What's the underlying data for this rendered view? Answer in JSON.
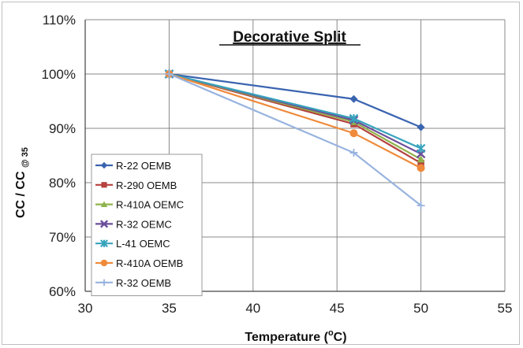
{
  "chart_data": {
    "type": "line",
    "title": "Decorative Split",
    "xlabel_main": "Temperature (",
    "xlabel_sup": "o",
    "xlabel_tail": "C)",
    "ylabel_main": "CC / CC ",
    "ylabel_sub": "@ 35",
    "xlim": [
      30,
      55
    ],
    "ylim": [
      60,
      110
    ],
    "x_ticks": [
      "30",
      "35",
      "40",
      "45",
      "50",
      "55"
    ],
    "y_ticks": [
      "60%",
      "70%",
      "80%",
      "90%",
      "100%",
      "110%"
    ],
    "grid": "major gridlines on both axes",
    "legend_position": "bottom-left",
    "series": [
      {
        "name": "R-22 OEMB",
        "color": "#3a64b0",
        "marker": "diamond",
        "x": [
          35,
          46,
          50
        ],
        "y": [
          100,
          95.4,
          90.2
        ]
      },
      {
        "name": "R-290 OEMB",
        "color": "#b5413e",
        "marker": "square",
        "x": [
          35,
          46,
          50
        ],
        "y": [
          100,
          90.8,
          83.6
        ]
      },
      {
        "name": "R-410A OEMC",
        "color": "#8fb34a",
        "marker": "triangle",
        "x": [
          35,
          46,
          50
        ],
        "y": [
          100,
          91.2,
          84.3
        ]
      },
      {
        "name": "R-32 OEMC",
        "color": "#6b4d9a",
        "marker": "x",
        "x": [
          35,
          46,
          50
        ],
        "y": [
          100,
          91.5,
          85.3
        ]
      },
      {
        "name": "L-41 OEMC",
        "color": "#38a3bd",
        "marker": "star",
        "x": [
          35,
          46,
          50
        ],
        "y": [
          100,
          91.8,
          86.3
        ]
      },
      {
        "name": "R-410A OEMB",
        "color": "#ef8a3a",
        "marker": "circle",
        "x": [
          35,
          46,
          50
        ],
        "y": [
          100,
          89.1,
          82.7
        ]
      },
      {
        "name": "R-32 OEMB",
        "color": "#97b3de",
        "marker": "plus",
        "x": [
          35,
          46,
          50
        ],
        "y": [
          100,
          85.5,
          75.8
        ]
      }
    ]
  }
}
